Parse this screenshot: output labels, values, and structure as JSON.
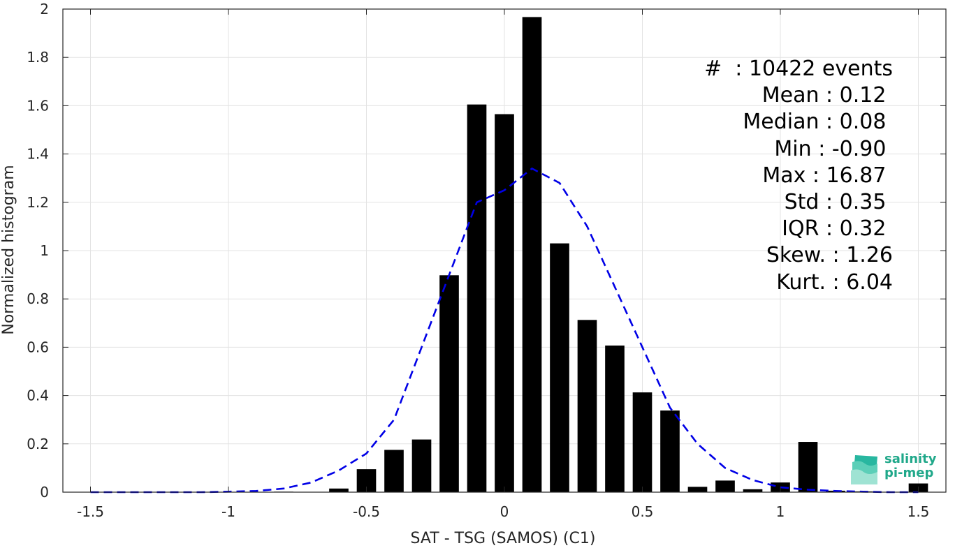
{
  "chart_data": {
    "type": "bar",
    "xlabel": "SAT - TSG (SAMOS) (C1)",
    "ylabel": "Normalized histogram",
    "xlim": [
      -1.6,
      1.6
    ],
    "ylim": [
      0,
      2
    ],
    "grid": true,
    "x_ticks": [
      -1.5,
      -1,
      -0.5,
      0,
      0.5,
      1,
      1.5
    ],
    "x_tick_labels": [
      "-1.5",
      "-1",
      "-0.5",
      "0",
      "0.5",
      "1",
      "1.5"
    ],
    "y_ticks": [
      0,
      0.2,
      0.4,
      0.6,
      0.8,
      1,
      1.2,
      1.4,
      1.6,
      1.8,
      2
    ],
    "y_tick_labels": [
      "0",
      "0.2",
      "0.4",
      "0.6",
      "0.8",
      "1",
      "1.2",
      "1.4",
      "1.6",
      "1.8",
      "2"
    ],
    "bar_width": 0.07,
    "bars": {
      "x": [
        -0.8,
        -0.6,
        -0.5,
        -0.4,
        -0.3,
        -0.2,
        -0.1,
        0.0,
        0.1,
        0.2,
        0.3,
        0.4,
        0.5,
        0.6,
        0.7,
        0.8,
        0.9,
        1.0,
        1.1,
        1.2,
        1.3,
        1.5
      ],
      "values": [
        0.002,
        0.015,
        0.095,
        0.175,
        0.218,
        0.898,
        1.605,
        1.565,
        1.967,
        1.03,
        0.713,
        0.607,
        0.413,
        0.338,
        0.022,
        0.048,
        0.012,
        0.04,
        0.208,
        0.006,
        0.003,
        0.036
      ]
    },
    "gaussian_fit": {
      "style": "dashed",
      "color": "#0000e6",
      "x": [
        -1.5,
        -1.4,
        -1.3,
        -1.2,
        -1.1,
        -1.0,
        -0.9,
        -0.8,
        -0.7,
        -0.6,
        -0.5,
        -0.4,
        -0.3,
        -0.2,
        -0.1,
        0.0,
        0.1,
        0.2,
        0.3,
        0.4,
        0.5,
        0.6,
        0.7,
        0.8,
        0.9,
        1.0,
        1.1,
        1.2,
        1.3,
        1.4,
        1.5
      ],
      "y": [
        0.0,
        0.0,
        0.0,
        0.0,
        0.0,
        0.002,
        0.005,
        0.015,
        0.04,
        0.09,
        0.16,
        0.3,
        0.6,
        0.9,
        1.2,
        1.25,
        1.34,
        1.28,
        1.1,
        0.85,
        0.6,
        0.35,
        0.2,
        0.1,
        0.05,
        0.02,
        0.01,
        0.005,
        0.002,
        0.0,
        0.0
      ]
    },
    "colors": {
      "bars": "#000000",
      "fit": "#0000e6",
      "grid": "#e3e3e3",
      "axis": "#262626"
    }
  },
  "stats": [
    "#  : 10422 events",
    "Mean : 0.12 ",
    "Median : 0.08 ",
    "Min : -0.90 ",
    "Max : 16.87 ",
    "Std : 0.35 ",
    "IQR : 0.32 ",
    "Skew. : 1.26",
    "Kurt. : 6.04"
  ],
  "logo": {
    "line1": "salinity",
    "line2": "pi-mep"
  }
}
